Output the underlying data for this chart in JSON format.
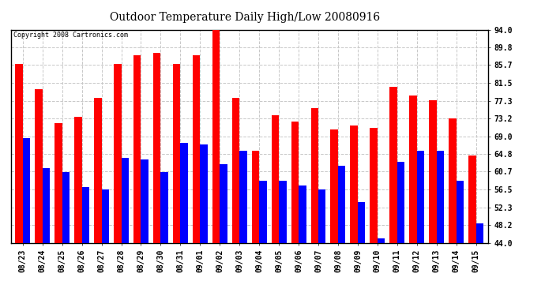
{
  "title": "Outdoor Temperature Daily High/Low 20080916",
  "copyright": "Copyright 2008 Cartronics.com",
  "dates": [
    "08/23",
    "08/24",
    "08/25",
    "08/26",
    "08/27",
    "08/28",
    "08/29",
    "08/30",
    "08/31",
    "09/01",
    "09/02",
    "09/03",
    "09/04",
    "09/05",
    "09/06",
    "09/07",
    "09/08",
    "09/09",
    "09/10",
    "09/11",
    "09/12",
    "09/13",
    "09/14",
    "09/15"
  ],
  "highs": [
    86.0,
    80.0,
    72.0,
    73.5,
    78.0,
    86.0,
    88.0,
    88.5,
    86.0,
    88.0,
    94.0,
    78.0,
    65.5,
    74.0,
    72.5,
    75.5,
    70.5,
    71.5,
    71.0,
    80.5,
    78.5,
    77.5,
    73.2,
    64.5
  ],
  "lows": [
    68.5,
    61.5,
    60.5,
    57.0,
    56.5,
    64.0,
    63.5,
    60.5,
    67.5,
    67.0,
    62.5,
    65.5,
    58.5,
    58.5,
    57.5,
    56.5,
    62.0,
    53.5,
    45.0,
    63.0,
    65.5,
    65.5,
    58.5,
    48.5
  ],
  "high_color": "#ff0000",
  "low_color": "#0000ff",
  "bg_color": "#ffffff",
  "plot_bg_color": "#ffffff",
  "grid_color": "#c8c8c8",
  "yticks": [
    44.0,
    48.2,
    52.3,
    56.5,
    60.7,
    64.8,
    69.0,
    73.2,
    77.3,
    81.5,
    85.7,
    89.8,
    94.0
  ],
  "ymin": 44.0,
  "ymax": 94.0,
  "bar_width": 0.38,
  "figwidth": 6.9,
  "figheight": 3.75,
  "dpi": 100
}
